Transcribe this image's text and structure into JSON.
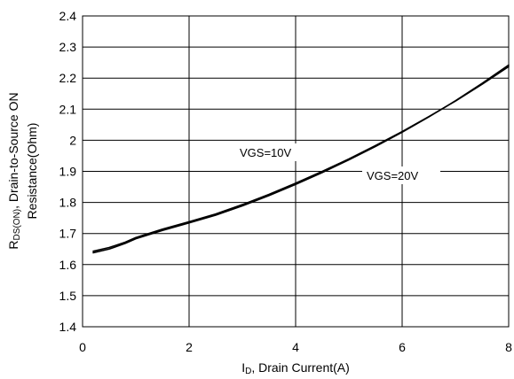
{
  "chart_data": {
    "type": "line",
    "title": "",
    "xlabel_parts": {
      "symbol": "I",
      "subscript": "D",
      "rest": ", Drain Current(A)"
    },
    "ylabel_parts": {
      "line1_symbol": "R",
      "line1_subscript": "DS(ON)",
      "line1_rest": ", Drain-to-Source ON",
      "line2": "Resistance(Ohm)"
    },
    "xlim": [
      0,
      8
    ],
    "ylim": [
      1.4,
      2.4
    ],
    "x_ticks": [
      "0",
      "2",
      "4",
      "6",
      "8"
    ],
    "y_ticks": [
      "1.4",
      "1.5",
      "1.6",
      "1.7",
      "1.8",
      "1.9",
      "2",
      "2.1",
      "2.2",
      "2.3",
      "2.4"
    ],
    "grid": true,
    "annotations": [
      "VGS=10V",
      "VGS=20V"
    ],
    "series": [
      {
        "name": "VGS=10V",
        "x": [
          0.2,
          0.5,
          0.8,
          1.0,
          1.5,
          2.0,
          2.5,
          3.0,
          3.5,
          4.0,
          4.5,
          5.0,
          5.5,
          6.0,
          6.5,
          7.0,
          7.5,
          8.0
        ],
        "y": [
          1.643,
          1.655,
          1.672,
          1.687,
          1.714,
          1.738,
          1.763,
          1.793,
          1.826,
          1.862,
          1.9,
          1.94,
          1.983,
          2.028,
          2.076,
          2.126,
          2.18,
          2.237
        ]
      },
      {
        "name": "VGS=20V",
        "x": [
          0.2,
          0.5,
          0.8,
          1.0,
          1.5,
          2.0,
          2.5,
          3.0,
          3.5,
          4.0,
          4.5,
          5.0,
          5.5,
          6.0,
          6.5,
          7.0,
          7.5,
          8.0
        ],
        "y": [
          1.638,
          1.65,
          1.668,
          1.683,
          1.71,
          1.734,
          1.759,
          1.789,
          1.822,
          1.858,
          1.896,
          1.937,
          1.98,
          2.026,
          2.075,
          2.127,
          2.183,
          2.242
        ]
      }
    ],
    "colors": {
      "line": "#000000",
      "grid": "#000000",
      "background": "#ffffff"
    }
  }
}
